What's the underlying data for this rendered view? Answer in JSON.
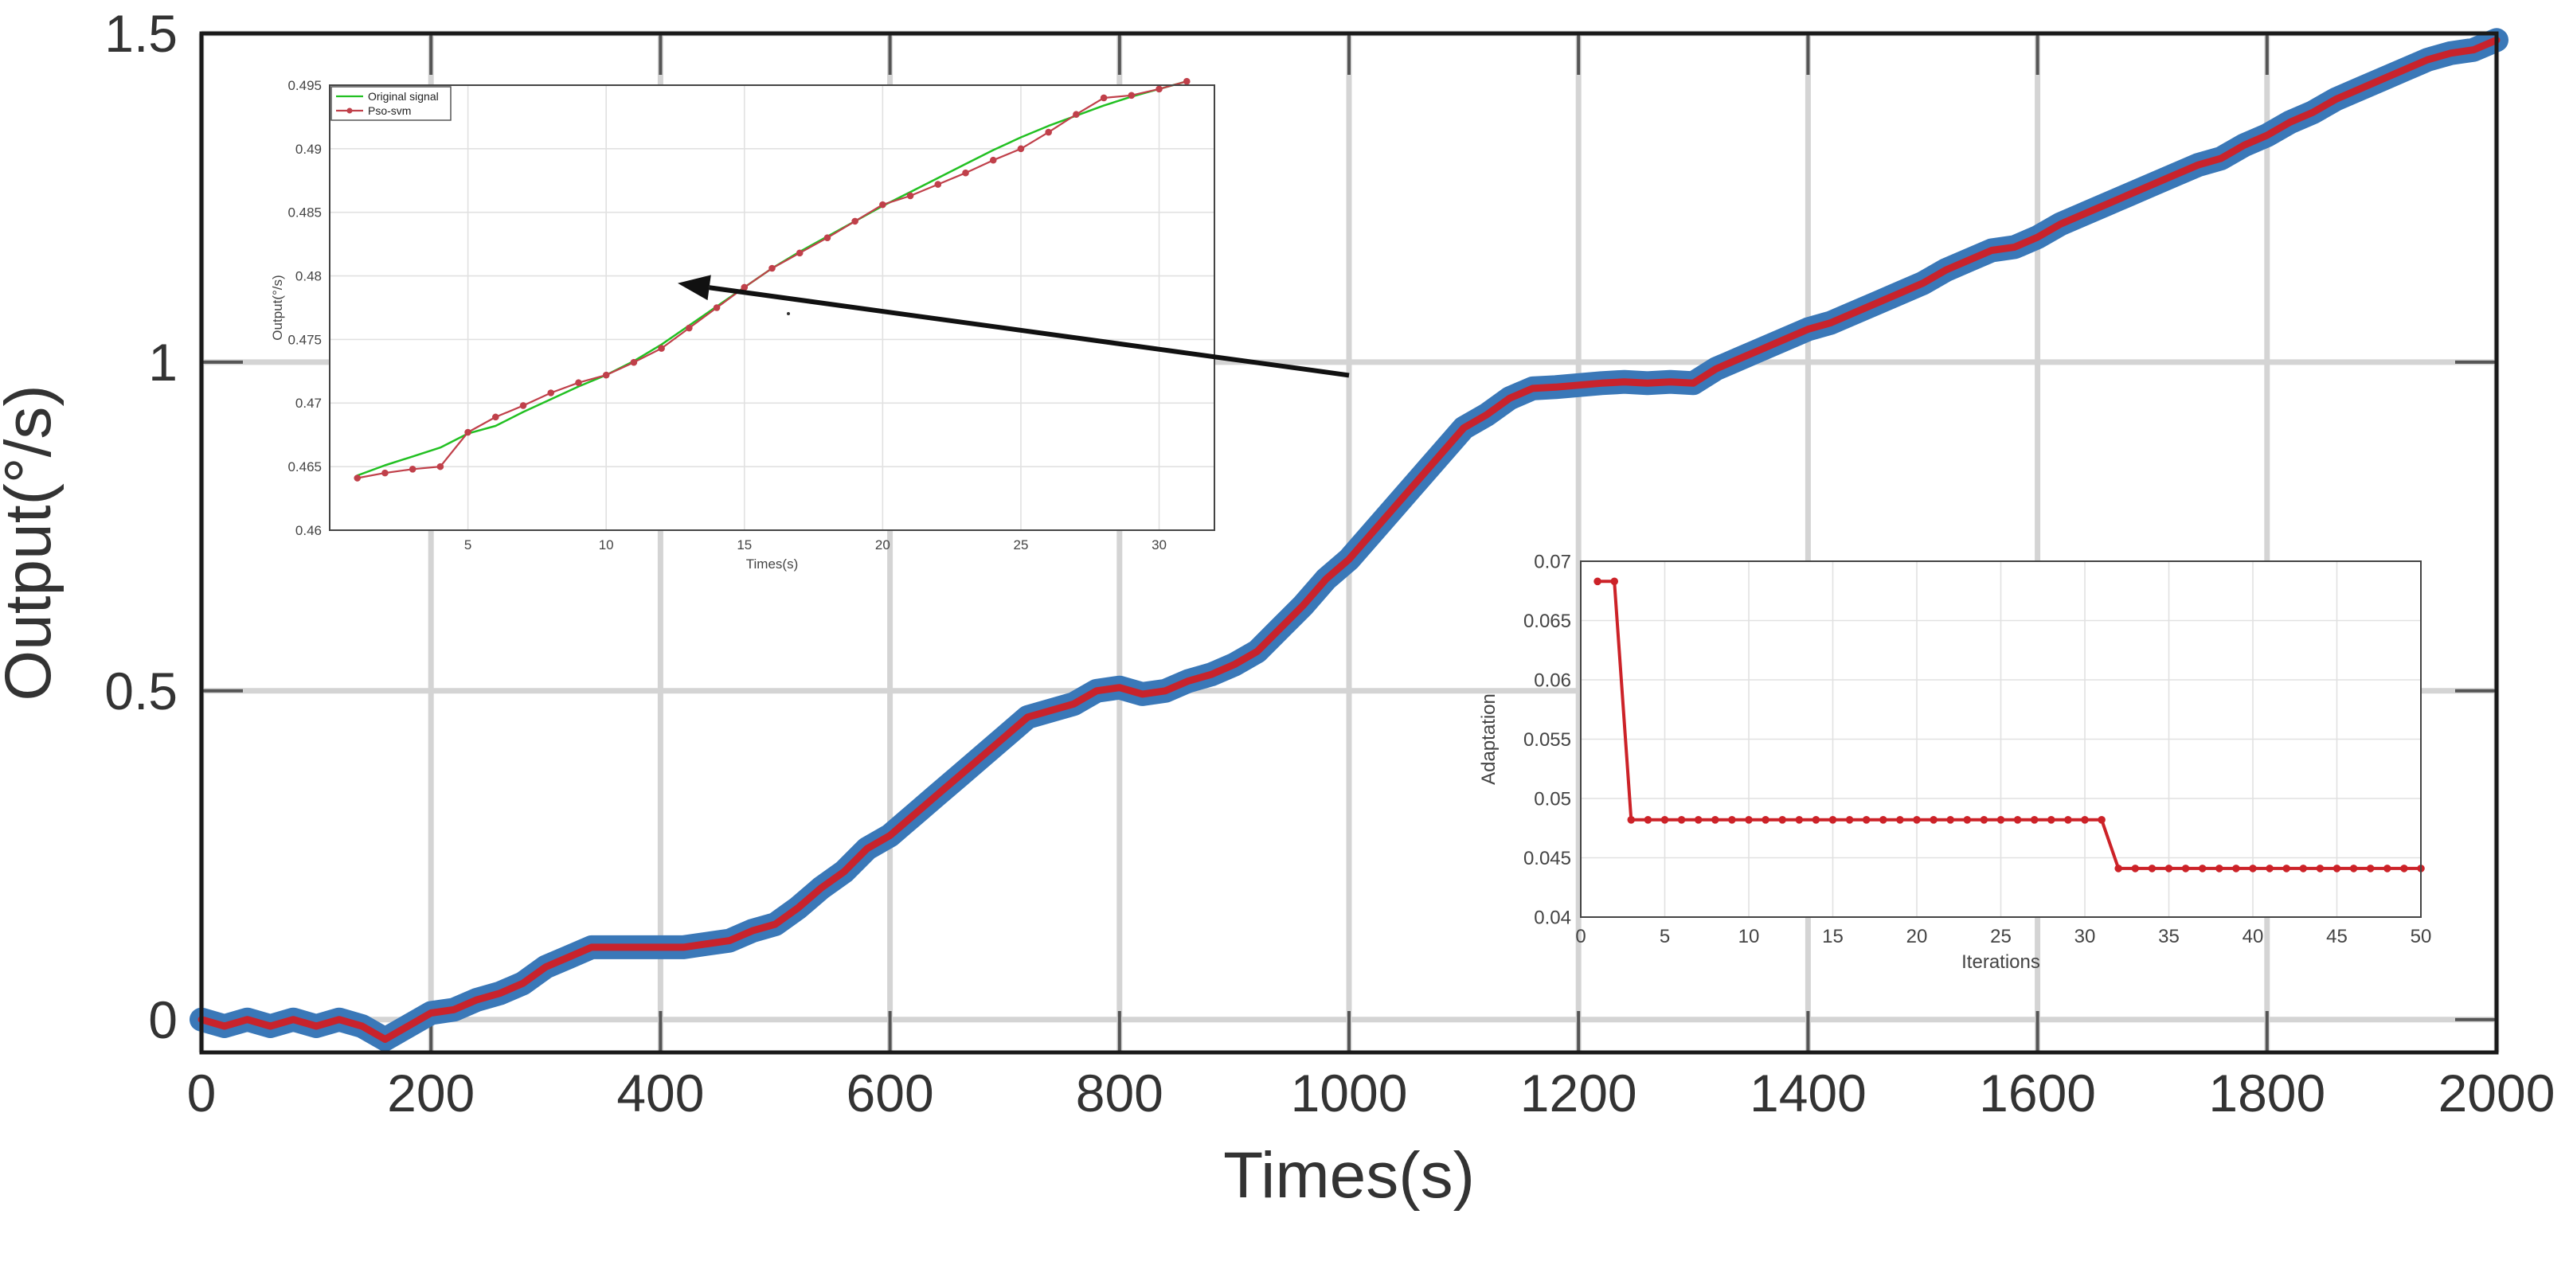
{
  "chart_data": [
    {
      "id": "main",
      "type": "line",
      "xlabel": "Times(s)",
      "ylabel": "Output(°/s)",
      "xlim": [
        0,
        2000
      ],
      "ylim": [
        -0.05,
        1.5
      ],
      "xticks": [
        0,
        200,
        400,
        600,
        800,
        1000,
        1200,
        1400,
        1600,
        1800,
        2000
      ],
      "yticks": [
        0,
        0.5,
        1,
        1.5
      ],
      "xtick_labels": [
        "0",
        "200",
        "400",
        "600",
        "800",
        "1000",
        "1200",
        "1400",
        "1600",
        "1800",
        "2000"
      ],
      "ytick_labels": [
        "0",
        "0.5",
        "1",
        "1.5"
      ],
      "grid": true,
      "series": [
        {
          "name": "Original signal",
          "color": "#3a78b8",
          "x": [
            0,
            20,
            40,
            60,
            80,
            100,
            120,
            140,
            160,
            180,
            200,
            220,
            240,
            260,
            280,
            300,
            320,
            340,
            360,
            380,
            400,
            420,
            440,
            460,
            480,
            500,
            520,
            540,
            560,
            580,
            600,
            620,
            640,
            660,
            680,
            700,
            720,
            740,
            760,
            780,
            800,
            820,
            840,
            860,
            880,
            900,
            920,
            940,
            960,
            980,
            1000,
            1020,
            1040,
            1060,
            1080,
            1100,
            1120,
            1140,
            1160,
            1180,
            1200,
            1220,
            1240,
            1260,
            1280,
            1300,
            1320,
            1340,
            1360,
            1380,
            1400,
            1420,
            1440,
            1460,
            1480,
            1500,
            1520,
            1540,
            1560,
            1580,
            1600,
            1620,
            1640,
            1660,
            1680,
            1700,
            1720,
            1740,
            1760,
            1780,
            1800,
            1820,
            1840,
            1860,
            1880,
            1900,
            1920,
            1940,
            1960,
            1980,
            2000
          ],
          "y": [
            0.0,
            -0.01,
            0.0,
            -0.01,
            0.0,
            -0.01,
            0.0,
            -0.01,
            -0.03,
            -0.01,
            0.01,
            0.015,
            0.03,
            0.04,
            0.055,
            0.08,
            0.095,
            0.11,
            0.11,
            0.11,
            0.11,
            0.11,
            0.115,
            0.12,
            0.135,
            0.145,
            0.17,
            0.2,
            0.225,
            0.26,
            0.28,
            0.31,
            0.34,
            0.37,
            0.4,
            0.43,
            0.46,
            0.47,
            0.48,
            0.5,
            0.505,
            0.495,
            0.5,
            0.515,
            0.525,
            0.54,
            0.56,
            0.595,
            0.63,
            0.67,
            0.7,
            0.74,
            0.78,
            0.82,
            0.86,
            0.9,
            0.92,
            0.945,
            0.96,
            0.962,
            0.965,
            0.968,
            0.97,
            0.968,
            0.97,
            0.968,
            0.99,
            1.005,
            1.02,
            1.035,
            1.05,
            1.06,
            1.075,
            1.09,
            1.105,
            1.12,
            1.14,
            1.155,
            1.17,
            1.175,
            1.19,
            1.21,
            1.225,
            1.24,
            1.255,
            1.27,
            1.285,
            1.3,
            1.31,
            1.33,
            1.345,
            1.365,
            1.38,
            1.4,
            1.415,
            1.43,
            1.445,
            1.46,
            1.47,
            1.475,
            1.49
          ]
        },
        {
          "name": "Pso-svm",
          "color": "#c8232c",
          "x": [
            0,
            20,
            40,
            60,
            80,
            100,
            120,
            140,
            160,
            180,
            200,
            220,
            240,
            260,
            280,
            300,
            320,
            340,
            360,
            380,
            400,
            420,
            440,
            460,
            480,
            500,
            520,
            540,
            560,
            580,
            600,
            620,
            640,
            660,
            680,
            700,
            720,
            740,
            760,
            780,
            800,
            820,
            840,
            860,
            880,
            900,
            920,
            940,
            960,
            980,
            1000,
            1020,
            1040,
            1060,
            1080,
            1100,
            1120,
            1140,
            1160,
            1180,
            1200,
            1220,
            1240,
            1260,
            1280,
            1300,
            1320,
            1340,
            1360,
            1380,
            1400,
            1420,
            1440,
            1460,
            1480,
            1500,
            1520,
            1540,
            1560,
            1580,
            1600,
            1620,
            1640,
            1660,
            1680,
            1700,
            1720,
            1740,
            1760,
            1780,
            1800,
            1820,
            1840,
            1860,
            1880,
            1900,
            1920,
            1940,
            1960,
            1980,
            2000
          ],
          "y": [
            0.0,
            -0.01,
            0.0,
            -0.01,
            0.0,
            -0.01,
            0.0,
            -0.01,
            -0.03,
            -0.01,
            0.01,
            0.015,
            0.03,
            0.04,
            0.055,
            0.08,
            0.095,
            0.11,
            0.11,
            0.11,
            0.11,
            0.11,
            0.115,
            0.12,
            0.135,
            0.145,
            0.17,
            0.2,
            0.225,
            0.26,
            0.28,
            0.31,
            0.34,
            0.37,
            0.4,
            0.43,
            0.46,
            0.47,
            0.48,
            0.5,
            0.505,
            0.495,
            0.5,
            0.515,
            0.525,
            0.54,
            0.56,
            0.595,
            0.63,
            0.67,
            0.7,
            0.74,
            0.78,
            0.82,
            0.86,
            0.9,
            0.92,
            0.945,
            0.96,
            0.962,
            0.965,
            0.968,
            0.97,
            0.968,
            0.97,
            0.968,
            0.99,
            1.005,
            1.02,
            1.035,
            1.05,
            1.06,
            1.075,
            1.09,
            1.105,
            1.12,
            1.14,
            1.155,
            1.17,
            1.175,
            1.19,
            1.21,
            1.225,
            1.24,
            1.255,
            1.27,
            1.285,
            1.3,
            1.31,
            1.33,
            1.345,
            1.365,
            1.38,
            1.4,
            1.415,
            1.43,
            1.445,
            1.46,
            1.47,
            1.475,
            1.49
          ]
        }
      ],
      "annotations": [
        {
          "type": "arrow",
          "from": [
            1000,
            0.98
          ],
          "to": [
            415,
            1.12
          ]
        }
      ]
    },
    {
      "id": "inset-left",
      "type": "line",
      "xlabel": "Times(s)",
      "ylabel": "Output(°/s)",
      "xlim": [
        0,
        32
      ],
      "ylim": [
        0.46,
        0.495
      ],
      "xticks": [
        5,
        10,
        15,
        20,
        25,
        30
      ],
      "yticks": [
        0.46,
        0.465,
        0.47,
        0.475,
        0.48,
        0.485,
        0.49,
        0.495
      ],
      "xtick_labels": [
        "5",
        "10",
        "15",
        "20",
        "25",
        "30"
      ],
      "ytick_labels": [
        "0.46",
        "0.465",
        "0.47",
        "0.475",
        "0.48",
        "0.485",
        "0.49",
        "0.495"
      ],
      "grid": true,
      "legend": {
        "position": "top-left",
        "entries": [
          "Original signal",
          "Pso-svm"
        ]
      },
      "series": [
        {
          "name": "Original signal",
          "color": "#22c022",
          "marker": false,
          "x": [
            1,
            2,
            3,
            4,
            5,
            6,
            7,
            8,
            9,
            10,
            11,
            12,
            13,
            14,
            15,
            16,
            17,
            18,
            19,
            20,
            21,
            22,
            23,
            24,
            25,
            26,
            27,
            28,
            29,
            30,
            31
          ],
          "y": [
            0.4643,
            0.4651,
            0.4658,
            0.4665,
            0.4676,
            0.4682,
            0.4693,
            0.4703,
            0.4713,
            0.4722,
            0.4733,
            0.4746,
            0.4761,
            0.4776,
            0.4791,
            0.4806,
            0.4819,
            0.4831,
            0.4843,
            0.4855,
            0.4866,
            0.4877,
            0.4888,
            0.4899,
            0.4909,
            0.4918,
            0.4926,
            0.4934,
            0.4941,
            0.4947,
            0.4953
          ]
        },
        {
          "name": "Pso-svm",
          "color": "#c0404a",
          "marker": true,
          "x": [
            1,
            2,
            3,
            4,
            5,
            6,
            7,
            8,
            9,
            10,
            11,
            12,
            13,
            14,
            15,
            16,
            17,
            18,
            19,
            20,
            21,
            22,
            23,
            24,
            25,
            26,
            27,
            28,
            29,
            30,
            31
          ],
          "y": [
            0.4641,
            0.4645,
            0.4648,
            0.465,
            0.4677,
            0.4689,
            0.4698,
            0.4708,
            0.4716,
            0.4722,
            0.4732,
            0.4743,
            0.4759,
            0.4775,
            0.4791,
            0.4806,
            0.4818,
            0.483,
            0.4843,
            0.4856,
            0.4863,
            0.4872,
            0.4881,
            0.4891,
            0.49,
            0.4913,
            0.4927,
            0.494,
            0.4942,
            0.4947,
            0.4953
          ]
        }
      ]
    },
    {
      "id": "inset-right",
      "type": "line",
      "xlabel": "Iterations",
      "ylabel": "Adaptation",
      "xlim": [
        0,
        50
      ],
      "ylim": [
        0.04,
        0.07
      ],
      "xticks": [
        0,
        5,
        10,
        15,
        20,
        25,
        30,
        35,
        40,
        45,
        50
      ],
      "yticks": [
        0.04,
        0.045,
        0.05,
        0.055,
        0.06,
        0.065,
        0.07
      ],
      "xtick_labels": [
        "0",
        "5",
        "10",
        "15",
        "20",
        "25",
        "30",
        "35",
        "40",
        "45",
        "50"
      ],
      "ytick_labels": [
        "0.04",
        "0.045",
        "0.05",
        "0.055",
        "0.06",
        "0.065",
        "0.07"
      ],
      "grid": true,
      "series": [
        {
          "name": "Adaptation",
          "color": "#cc2228",
          "marker": true,
          "x": [
            1,
            2,
            3,
            4,
            5,
            6,
            7,
            8,
            9,
            10,
            11,
            12,
            13,
            14,
            15,
            16,
            17,
            18,
            19,
            20,
            21,
            22,
            23,
            24,
            25,
            26,
            27,
            28,
            29,
            30,
            31,
            32,
            33,
            34,
            35,
            36,
            37,
            38,
            39,
            40,
            41,
            42,
            43,
            44,
            45,
            46,
            47,
            48,
            49,
            50
          ],
          "y": [
            0.0683,
            0.0683,
            0.0482,
            0.0482,
            0.0482,
            0.0482,
            0.0482,
            0.0482,
            0.0482,
            0.0482,
            0.0482,
            0.0482,
            0.0482,
            0.0482,
            0.0482,
            0.0482,
            0.0482,
            0.0482,
            0.0482,
            0.0482,
            0.0482,
            0.0482,
            0.0482,
            0.0482,
            0.0482,
            0.0482,
            0.0482,
            0.0482,
            0.0482,
            0.0482,
            0.0482,
            0.0441,
            0.0441,
            0.0441,
            0.0441,
            0.0441,
            0.0441,
            0.0441,
            0.0441,
            0.0441,
            0.0441,
            0.0441,
            0.0441,
            0.0441,
            0.0441,
            0.0441,
            0.0441,
            0.0441,
            0.0441,
            0.0441
          ]
        }
      ]
    }
  ]
}
